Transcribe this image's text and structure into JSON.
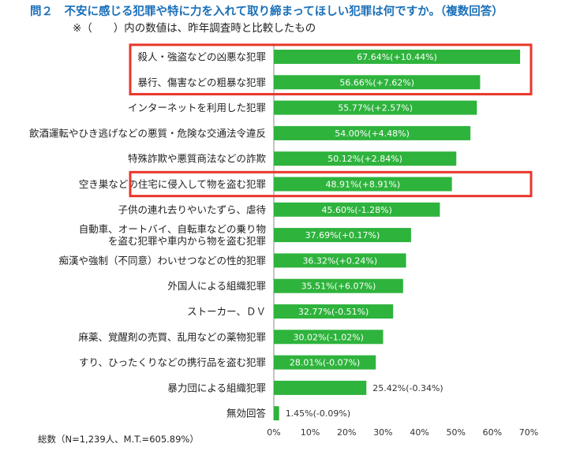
{
  "header": {
    "title": "問２　不安に感じる犯罪や特に力を入れて取り締まってほしい犯罪は何ですか。（複数回答）",
    "subtitle": "※（　　）内の数値は、昨年調査時と比較したもの"
  },
  "footer": {
    "note": "総数（N=1,239人、M.T.=605.89%）"
  },
  "colors": {
    "bar": "#2eb33c",
    "highlight": "#e8372c",
    "title": "#1a6fb8"
  },
  "chart_data": {
    "type": "bar",
    "orientation": "horizontal",
    "categories": [
      [
        "殺人・強盗などの凶悪な犯罪"
      ],
      [
        "暴行、傷害などの粗暴な犯罪"
      ],
      [
        "インターネットを利用した犯罪"
      ],
      [
        "飲酒運転やひき逃げなどの悪質・危険な交通法令違反"
      ],
      [
        "特殊詐欺や悪質商法などの詐欺"
      ],
      [
        "空き巣などの住宅に侵入して物を盗む犯罪"
      ],
      [
        "子供の連れ去りやいたずら、虐待"
      ],
      [
        "自動車、オートバイ、自転車などの乗り物",
        "を盗む犯罪や車内から物を盗む犯罪"
      ],
      [
        "痴漢や強制（不同意）わいせつなどの性的犯罪"
      ],
      [
        "外国人による組織犯罪"
      ],
      [
        "ストーカー、ＤＶ"
      ],
      [
        "麻薬、覚醒剤の売買、乱用などの薬物犯罪"
      ],
      [
        "すり、ひったくりなどの携行品を盗む犯罪"
      ],
      [
        "暴力団による組織犯罪"
      ],
      [
        "無効回答"
      ]
    ],
    "values": [
      67.64,
      56.66,
      55.77,
      54.0,
      50.12,
      48.91,
      45.6,
      37.69,
      36.32,
      35.51,
      32.77,
      30.02,
      28.01,
      25.42,
      1.45
    ],
    "value_labels": [
      "67.64%(+10.44%)",
      "56.66%(+7.62%)",
      "55.77%(+2.57%)",
      "54.00%(+4.48%)",
      "50.12%(+2.84%)",
      "48.91%(+8.91%)",
      "45.60%(-1.28%)",
      "37.69%(+0.17%)",
      "36.32%(+0.24%)",
      "35.51%(+6.07%)",
      "32.77%(-0.51%)",
      "30.02%(-1.02%)",
      "28.01%(-0.07%)",
      "25.42%(-0.34%)",
      "1.45%(-0.09%)"
    ],
    "highlighted": [
      0,
      1,
      5
    ],
    "xlim": [
      0,
      70
    ],
    "xticks": [
      "0%",
      "10%",
      "20%",
      "30%",
      "40%",
      "50%",
      "60%",
      "70%"
    ],
    "grid": false
  }
}
